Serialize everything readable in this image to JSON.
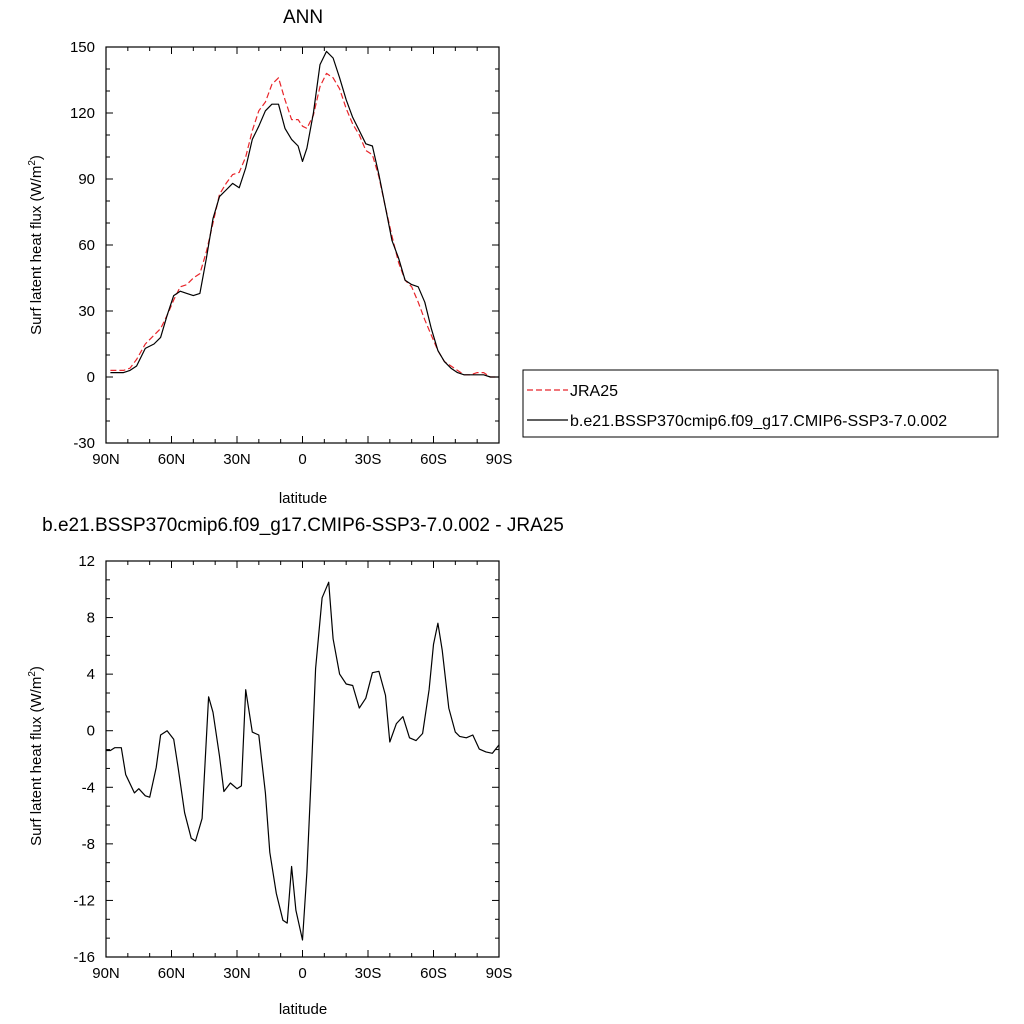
{
  "chart_data": [
    {
      "type": "line",
      "title": "ANN",
      "xlabel": "latitude",
      "ylabel": "Surf latent heat flux (W/m",
      "ylabel_sup": "2",
      "ylabel_close": ")",
      "xlim": [
        90,
        -90
      ],
      "ylim": [
        -30,
        150
      ],
      "x_ticks": [
        90,
        60,
        30,
        0,
        -30,
        -60,
        -90
      ],
      "x_tick_labels": [
        "90N",
        "60N",
        "30N",
        "0",
        "30S",
        "60S",
        "90S"
      ],
      "y_ticks": [
        -30,
        0,
        30,
        60,
        90,
        120,
        150
      ],
      "y_tick_labels": [
        "-30",
        "0",
        "30",
        "60",
        "90",
        "120",
        "150"
      ],
      "legend": "right",
      "series": [
        {
          "name": "JRA25",
          "color": "#e8252a",
          "dash": true,
          "x": [
            88,
            82,
            79,
            76,
            72,
            68,
            65,
            62,
            59,
            56,
            53,
            50,
            47,
            44,
            41,
            38,
            35,
            32,
            29,
            26,
            23,
            20,
            17,
            14,
            11,
            8,
            5,
            2,
            0,
            -2,
            -5,
            -8,
            -11,
            -14,
            -17,
            -20,
            -23,
            -26,
            -29,
            -32,
            -35,
            -38,
            -41,
            -44,
            -47,
            -50,
            -53,
            -56,
            -59,
            -62,
            -65,
            -68,
            -71,
            -74,
            -77,
            -80,
            -83,
            -86,
            -90
          ],
          "values": [
            3,
            3,
            4,
            8,
            15,
            19,
            22,
            28,
            35,
            41,
            42,
            45,
            47,
            57,
            70,
            83,
            88,
            92,
            93,
            100,
            112,
            121,
            125,
            133,
            136,
            126,
            117,
            117,
            114,
            113,
            119,
            132,
            138,
            136,
            131,
            122,
            115,
            110,
            103,
            101,
            91,
            77,
            64,
            52,
            44,
            41,
            34,
            26,
            19,
            12,
            7,
            5,
            3,
            1,
            1,
            2,
            2,
            0,
            0
          ]
        },
        {
          "name": "b.e21.BSSP370cmip6.f09_g17.CMIP6-SSP3-7.0.002",
          "color": "#000000",
          "dash": false,
          "x": [
            88,
            82,
            79,
            76,
            72,
            68,
            65,
            62,
            59,
            56,
            53,
            50,
            47,
            44,
            41,
            38,
            35,
            32,
            29,
            26,
            23,
            20,
            17,
            14,
            11,
            8,
            5,
            2,
            0,
            -2,
            -5,
            -8,
            -11,
            -14,
            -17,
            -20,
            -23,
            -26,
            -29,
            -32,
            -35,
            -38,
            -41,
            -44,
            -47,
            -50,
            -53,
            -56,
            -59,
            -62,
            -65,
            -68,
            -71,
            -74,
            -77,
            -80,
            -83,
            -86,
            -90
          ],
          "values": [
            2,
            2,
            3,
            5,
            13,
            15,
            18,
            28,
            37,
            39,
            38,
            37,
            38,
            54,
            72,
            82,
            85,
            88,
            86,
            95,
            108,
            114,
            121,
            124,
            124,
            113,
            108,
            105,
            98,
            104,
            120,
            142,
            148,
            145,
            136,
            126,
            118,
            112,
            106,
            105,
            92,
            77,
            62,
            54,
            44,
            42,
            41,
            34,
            22,
            12,
            7,
            4,
            2,
            1,
            1,
            1,
            1,
            0,
            0
          ]
        }
      ]
    },
    {
      "type": "line",
      "title": "b.e21.BSSP370cmip6.f09_g17.CMIP6-SSP3-7.0.002 - JRA25",
      "xlabel": "latitude",
      "ylabel": "Surf latent heat flux (W/m",
      "ylabel_sup": "2",
      "ylabel_close": ")",
      "xlim": [
        90,
        -90
      ],
      "ylim": [
        -16,
        12
      ],
      "x_ticks": [
        90,
        60,
        30,
        0,
        -30,
        -60,
        -90
      ],
      "x_tick_labels": [
        "90N",
        "60N",
        "30N",
        "0",
        "30S",
        "60S",
        "90S"
      ],
      "y_ticks": [
        -16,
        -12,
        -8,
        -4,
        0,
        4,
        8,
        12
      ],
      "y_tick_labels": [
        "-16",
        "-12",
        "-8",
        "-4",
        "0",
        "4",
        "8",
        "12"
      ],
      "series": [
        {
          "color": "#000000",
          "dash": false,
          "x": [
            90,
            88,
            86,
            83,
            81,
            77,
            75,
            72,
            70,
            67,
            65,
            62,
            59,
            57,
            54,
            51,
            49,
            46,
            43,
            41,
            38,
            36,
            33,
            30,
            28,
            26,
            23,
            20,
            17,
            15,
            12,
            9,
            7,
            5,
            3,
            0,
            -2,
            -4,
            -6,
            -9,
            -12,
            -14,
            -17,
            -20,
            -23,
            -26,
            -29,
            -32,
            -35,
            -38,
            -40,
            -43,
            -46,
            -49,
            -52,
            -55,
            -58,
            -60,
            -62,
            -64,
            -67,
            -70,
            -72,
            -75,
            -78,
            -81,
            -84,
            -87,
            -90
          ],
          "values": [
            -1.4,
            -1.4,
            -1.2,
            -1.2,
            -3.1,
            -4.4,
            -4.1,
            -4.6,
            -4.7,
            -2.6,
            -0.3,
            0.0,
            -0.6,
            -2.6,
            -5.8,
            -7.6,
            -7.8,
            -6.2,
            2.4,
            1.3,
            -1.8,
            -4.3,
            -3.7,
            -4.1,
            -3.9,
            2.9,
            -0.1,
            -0.3,
            -4.4,
            -8.6,
            -11.5,
            -13.4,
            -13.6,
            -9.6,
            -12.7,
            -14.8,
            -10.0,
            -3.2,
            4.4,
            9.4,
            10.5,
            6.5,
            4.0,
            3.3,
            3.2,
            1.6,
            2.3,
            4.1,
            4.2,
            2.5,
            -0.8,
            0.5,
            1.0,
            -0.5,
            -0.7,
            -0.2,
            2.9,
            6.1,
            7.6,
            5.7,
            1.6,
            -0.1,
            -0.4,
            -0.5,
            -0.3,
            -1.3,
            -1.5,
            -1.6,
            -1.0
          ]
        }
      ]
    }
  ]
}
